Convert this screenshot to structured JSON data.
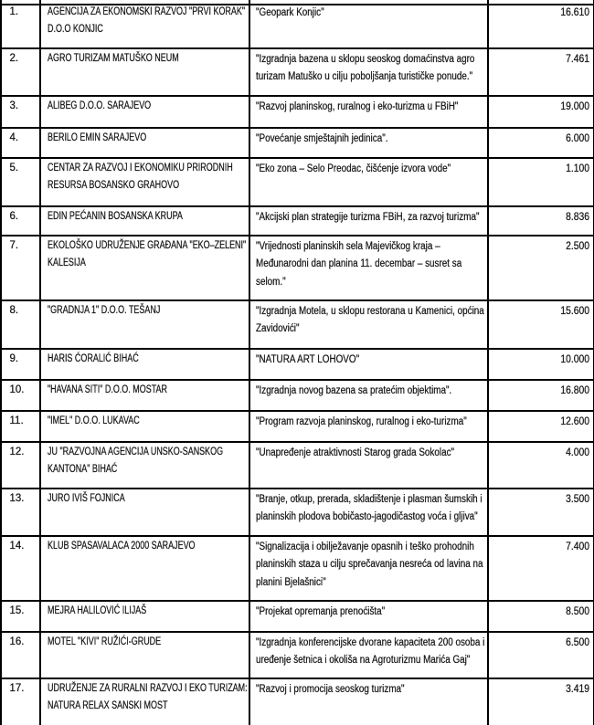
{
  "colors": {
    "border": "#000000",
    "text": "#1d1d1d",
    "background": "#ffffff"
  },
  "table": {
    "rows": [
      {
        "num": "1.",
        "beneficiary": "AGENCIJA ZA EKONOMSKI RAZVOJ \"PRVI KORAK\"\nD.O.O KONJIC",
        "project": "\"Geopark Konjic\"",
        "amount": "16.610"
      },
      {
        "num": "2.",
        "beneficiary": "AGRO TURIZAM MATUŠKO NEUM",
        "project": "\"Izgradnja bazena u sklopu seoskog domaćinstva agro\nturizam Matuško u cilju poboljšanja turističke ponude.\"",
        "amount": "7.461"
      },
      {
        "num": "3.",
        "beneficiary": "ALIBEG D.O.O. SARAJEVO",
        "project": "\"Razvoj planinskog, ruralnog i eko-turizma u FBiH\"",
        "amount": "19.000"
      },
      {
        "num": "4.",
        "beneficiary": "BERILO EMIN SARAJEVO",
        "project": "\"Povećanje smještajnih jedinica\".",
        "amount": "6.000"
      },
      {
        "num": "5.",
        "beneficiary": "CENTAR ZA RAZVOJ I EKONOMIKU PRIRODNIH\nRESURSA BOSANSKO GRAHOVO",
        "project": "\"Eko zona – Selo Preodac, čišćenje izvora vode\"",
        "amount": "1.100"
      },
      {
        "num": "6.",
        "beneficiary": "EDIN PEĆANIN BOSANSKA KRUPA",
        "project": "\"Akcijski plan strategije turizma FBiH, za razvoj turizma\"",
        "amount": "8.836"
      },
      {
        "num": "7.",
        "beneficiary": "EKOLOŠKO UDRUŽENJE GRAĐANA \"EKO–ZELENI\"\nKALESIJA",
        "project": "\"Vrijednosti planinskih sela Majevičkog kraja –\nMeđunarodni dan planina 11. decembar – susret sa\nselom.\"",
        "amount": "2.500"
      },
      {
        "num": "8.",
        "beneficiary": "\"GRADNJA 1\" D.O.O. TEŠANJ",
        "project": "\"Izgradnja Motela, u sklopu restorana u Kamenici, općina\nZavidovići\"",
        "amount": "15.600"
      },
      {
        "num": "9.",
        "beneficiary": "HARIS ĆORALIĆ BIHAĆ",
        "project": "\"NATURA ART LOHOVO\"",
        "amount": "10.000"
      },
      {
        "num": "10.",
        "beneficiary": "\"HAVANA SITI\" D.O.O. MOSTAR",
        "project": "\"Izgradnja novog bazena sa pratećim objektima\".",
        "amount": "16.800"
      },
      {
        "num": "11.",
        "beneficiary": "\"IMEL\" D.O.O. LUKAVAC",
        "project": "\"Program razvoja planinskog, ruralnog i eko-turizma\"",
        "amount": "12.600"
      },
      {
        "num": "12.",
        "beneficiary": "JU \"RAZVOJNA AGENCIJA UNSKO-SANSKOG\nKANTONA\" BIHAĆ",
        "project": "\"Unapređenje atraktivnosti Starog grada Sokolac\"",
        "amount": "4.000"
      },
      {
        "num": "13.",
        "beneficiary": "JURO IVIŠ FOJNICA",
        "project": "\"Branje, otkup, prerada, skladištenje i plasman šumskih i\nplaninskih plodova bobičasto-jagodičastog voća i gljiva\"",
        "amount": "3.500"
      },
      {
        "num": "14.",
        "beneficiary": "KLUB SPASAVALACA 2000 SARAJEVO",
        "project": "\"Signalizacija i obilježavanje opasnih i teško prohodnih\nplaninskih staza u cilju sprečavanja nesreća od lavina na\nplanini Bjelašnici\"",
        "amount": "7.400"
      },
      {
        "num": "15.",
        "beneficiary": "MEJRA HALILOVIĆ ILIJAŠ",
        "project": "\"Projekat opremanja prenoćišta\"",
        "amount": "8.500"
      },
      {
        "num": "16.",
        "beneficiary": "MOTEL \"KIVI\" RUŽIĆI-GRUDE",
        "project": "\"Izgradnja konferencijske dvorane kapaciteta 200 osoba i\nuređenje šetnica i okoliša na Agroturizmu Marića Gaj\"",
        "amount": "6.500"
      },
      {
        "num": "17.",
        "beneficiary": "UDRUŽENJE ZA RURALNI RAZVOJ I EKO TURIZAM:\nNATURA RELAX SANSKI MOST",
        "project": "\"Razvoj i promocija seoskog turizma\"",
        "amount": "3.419"
      }
    ]
  }
}
